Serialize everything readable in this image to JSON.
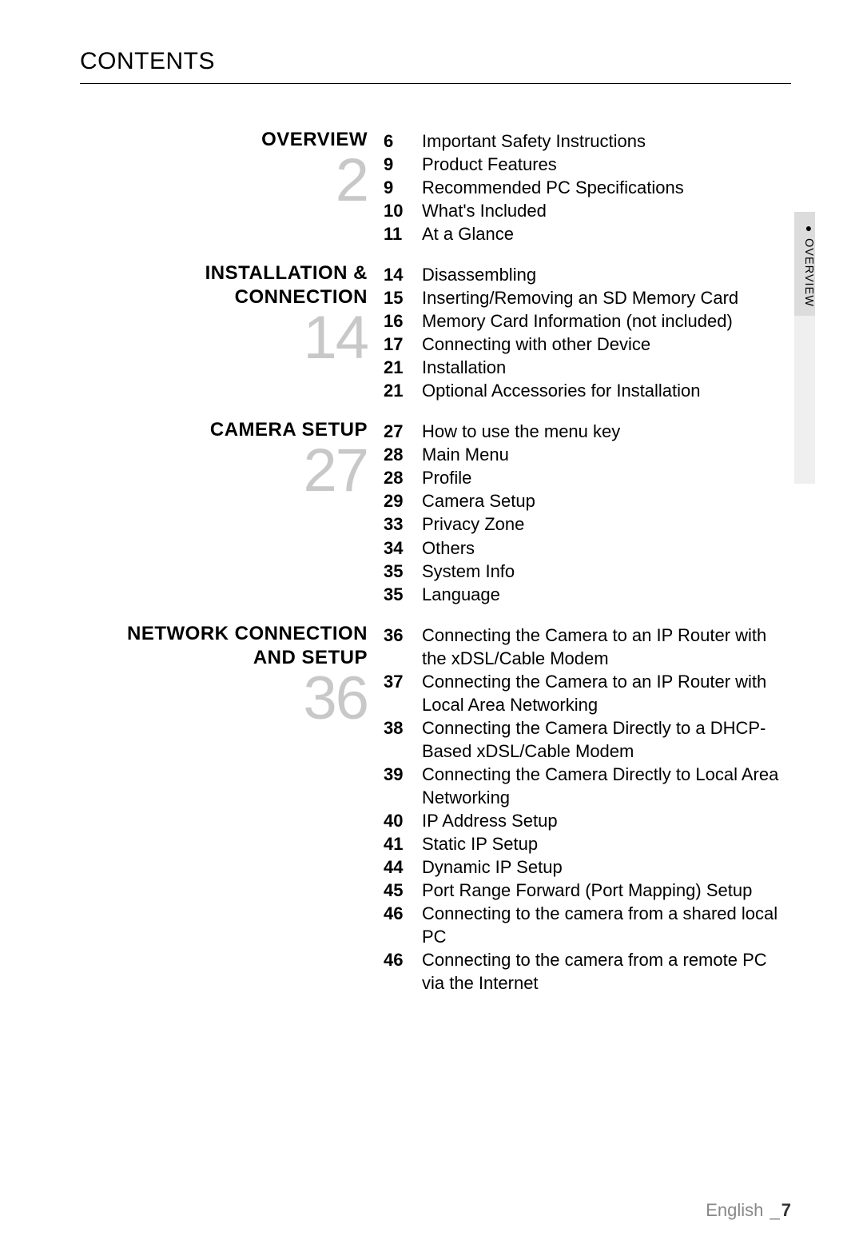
{
  "page_title": "CONTENTS",
  "side_tab": {
    "label": "OVERVIEW",
    "bullet": "●",
    "active_bg": "#dcdcdc",
    "rest_bg": "#efefef"
  },
  "sections": [
    {
      "title": "OVERVIEW",
      "number": "2",
      "entries": [
        {
          "page": "6",
          "label": "Important Safety Instructions"
        },
        {
          "page": "9",
          "label": "Product Features"
        },
        {
          "page": "9",
          "label": "Recommended PC Specifications"
        },
        {
          "page": "10",
          "label": "What's Included"
        },
        {
          "page": "11",
          "label": "At a Glance"
        }
      ]
    },
    {
      "title": "INSTALLATION & CONNECTION",
      "number": "14",
      "entries": [
        {
          "page": "14",
          "label": "Disassembling"
        },
        {
          "page": "15",
          "label": "Inserting/Removing an SD Memory Card"
        },
        {
          "page": "16",
          "label": "Memory Card Information (not included)"
        },
        {
          "page": "17",
          "label": "Connecting with other Device"
        },
        {
          "page": "21",
          "label": "Installation"
        },
        {
          "page": "21",
          "label": "Optional Accessories for Installation"
        }
      ]
    },
    {
      "title": "CAMERA SETUP",
      "number": "27",
      "entries": [
        {
          "page": "27",
          "label": "How to use the menu key"
        },
        {
          "page": "28",
          "label": "Main Menu"
        },
        {
          "page": "28",
          "label": "Profile"
        },
        {
          "page": "29",
          "label": "Camera Setup"
        },
        {
          "page": "33",
          "label": "Privacy Zone"
        },
        {
          "page": "34",
          "label": "Others"
        },
        {
          "page": "35",
          "label": "System Info"
        },
        {
          "page": "35",
          "label": "Language"
        }
      ]
    },
    {
      "title": "NETWORK CONNECTION AND SETUP",
      "number": "36",
      "entries": [
        {
          "page": "36",
          "label": "Connecting the Camera to an IP Router with the xDSL/Cable Modem"
        },
        {
          "page": "37",
          "label": "Connecting the Camera to an IP Router with Local Area Networking"
        },
        {
          "page": "38",
          "label": "Connecting the Camera Directly to a DHCP-Based xDSL/Cable Modem"
        },
        {
          "page": "39",
          "label": "Connecting the Camera Directly to Local Area Networking"
        },
        {
          "page": "40",
          "label": "IP Address Setup"
        },
        {
          "page": "41",
          "label": "Static IP Setup"
        },
        {
          "page": "44",
          "label": "Dynamic IP Setup"
        },
        {
          "page": "45",
          "label": "Port Range Forward (Port Mapping) Setup"
        },
        {
          "page": "46",
          "label": "Connecting to the camera from a shared local PC"
        },
        {
          "page": "46",
          "label": "Connecting to the camera from a remote PC via the Internet"
        }
      ]
    }
  ],
  "footer": {
    "language": "English",
    "separator": "_",
    "page_number": "7"
  },
  "colors": {
    "text": "#000000",
    "big_number": "#c8c8c8",
    "footer_lang": "#888888",
    "footer_num": "#333333",
    "rule": "#000000",
    "background": "#ffffff"
  },
  "typography": {
    "page_title_size_pt": 22,
    "section_title_size_pt": 18,
    "big_number_size_pt": 56,
    "toc_size_pt": 16,
    "side_tab_size_pt": 11,
    "footer_size_pt": 16
  }
}
